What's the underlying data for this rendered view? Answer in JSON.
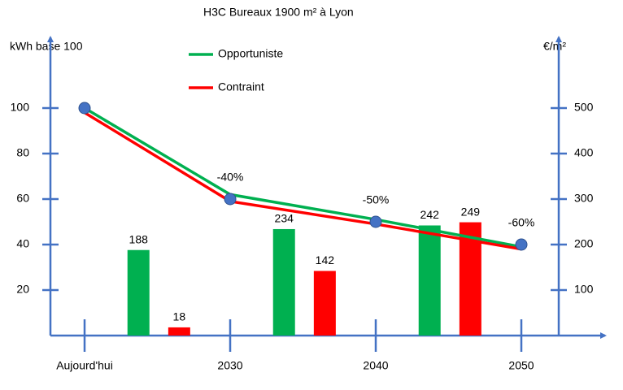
{
  "chart_data": {
    "type": "combo",
    "title": "H3C Bureaux 1900 m² à Lyon",
    "ylabel": "kWh base 100",
    "y2label": "€/m²",
    "categories": [
      "Aujourd'hui",
      "2030",
      "2040",
      "2050"
    ],
    "ylim": [
      0,
      130
    ],
    "yticks": [
      20,
      40,
      60,
      80,
      100
    ],
    "y2lim": [
      0,
      650
    ],
    "y2ticks": [
      100,
      200,
      300,
      400,
      500
    ],
    "legend": "top",
    "series": [
      {
        "type": "line",
        "name": "Opportuniste",
        "color": "#00b050",
        "values": [
          100,
          62,
          51,
          39
        ]
      },
      {
        "type": "line",
        "name": "Contraint",
        "color": "#ff0000",
        "values": [
          98,
          59,
          49,
          38
        ]
      },
      {
        "type": "scatter",
        "color": "#4472c4",
        "values": [
          100,
          60,
          50,
          40
        ],
        "labels": [
          null,
          "-40%",
          "-50%",
          "-60%"
        ]
      },
      {
        "type": "bar",
        "axis": "y2",
        "color": "#00b050",
        "values": [
          188,
          234,
          242,
          null
        ]
      },
      {
        "type": "bar",
        "axis": "y2",
        "color": "#ff0000",
        "values": [
          18,
          142,
          249,
          null
        ]
      }
    ]
  }
}
